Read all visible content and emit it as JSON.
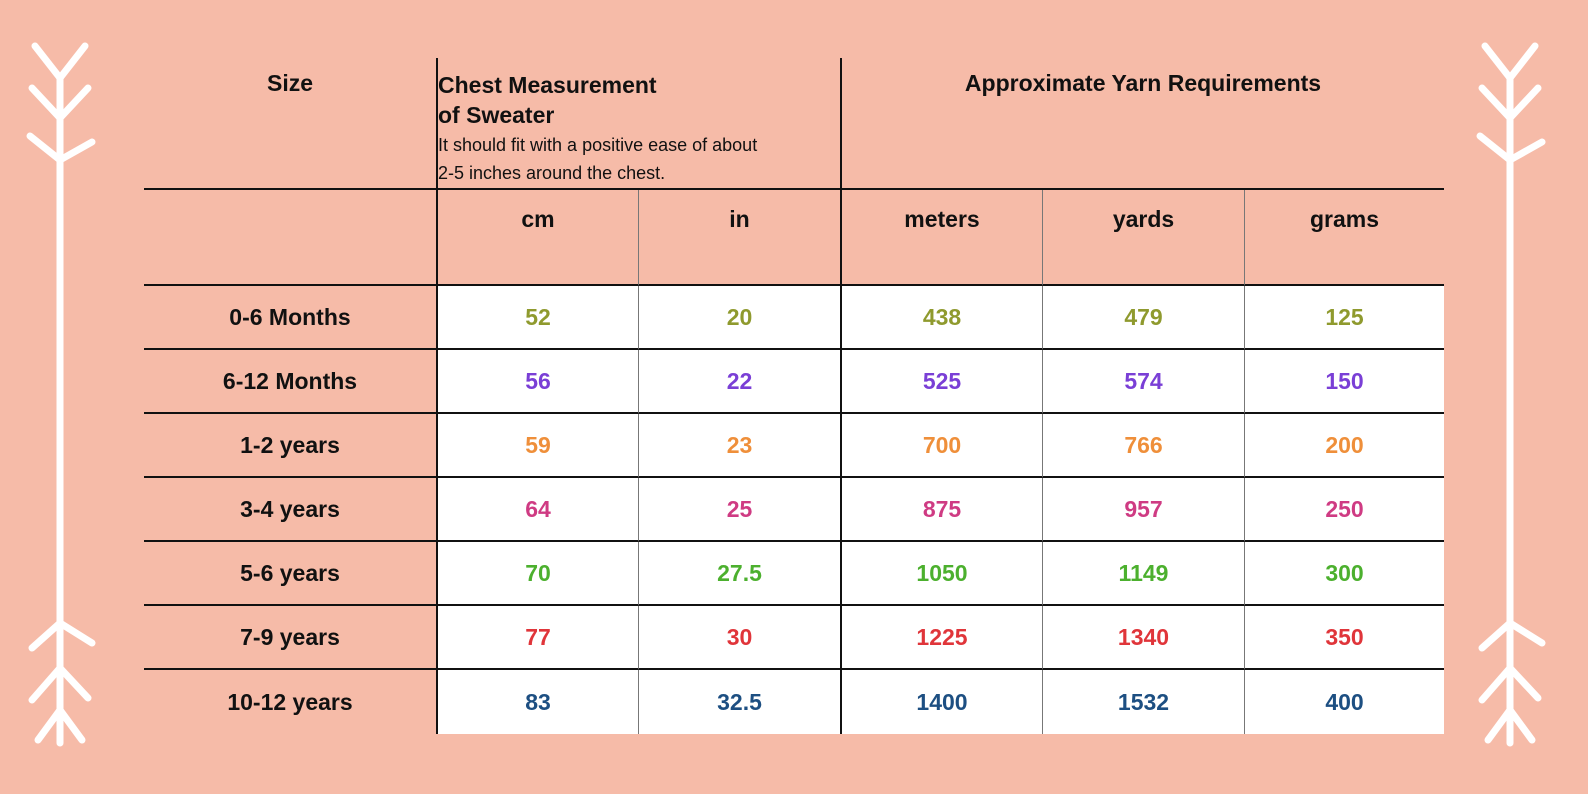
{
  "header": {
    "size_label": "Size",
    "chest_title_line1": "Chest Measurement",
    "chest_title_line2": "of Sweater",
    "chest_note_line1": "It should fit with a positive ease of about",
    "chest_note_line2": "2-5 inches around the chest.",
    "yarn_title": "Approximate Yarn Requirements"
  },
  "units": [
    "cm",
    "in",
    "meters",
    "yards",
    "grams"
  ],
  "rows": [
    {
      "size": "0-6 Months",
      "color": "#8f9a2e",
      "values": [
        "52",
        "20",
        "438",
        "479",
        "125"
      ]
    },
    {
      "size": "6-12 Months",
      "color": "#7a3fd6",
      "values": [
        "56",
        "22",
        "525",
        "574",
        "150"
      ]
    },
    {
      "size": "1-2 years",
      "color": "#ef8f3a",
      "values": [
        "59",
        "23",
        "700",
        "766",
        "200"
      ]
    },
    {
      "size": "3-4 years",
      "color": "#cf3b83",
      "values": [
        "64",
        "25",
        "875",
        "957",
        "250"
      ]
    },
    {
      "size": "5-6 years",
      "color": "#4cb02e",
      "values": [
        "70",
        "27.5",
        "1050",
        "1149",
        "300"
      ]
    },
    {
      "size": "7-9 years",
      "color": "#e0353a",
      "values": [
        "77",
        "30",
        "1225",
        "1340",
        "350"
      ]
    },
    {
      "size": "10-12 years",
      "color": "#1d4f82",
      "values": [
        "83",
        "32.5",
        "1400",
        "1532",
        "400"
      ]
    }
  ],
  "colors": {
    "background": "#f6bba8",
    "arrow": "#ffffff"
  },
  "decorations": {
    "left_icon": "arrow-icon",
    "right_icon": "arrow-icon"
  }
}
